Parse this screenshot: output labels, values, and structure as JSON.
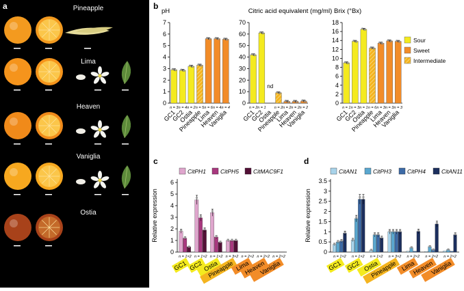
{
  "panel_letters": {
    "a": "a",
    "b": "b",
    "c": "c",
    "d": "d"
  },
  "photo_panel": {
    "varieties": [
      {
        "name": "Pineapple",
        "fruit_color": "#f39a1f",
        "has_flower": false,
        "leaf": true
      },
      {
        "name": "Lima",
        "fruit_color": "#f5941c",
        "has_flower": true,
        "leaf": true
      },
      {
        "name": "Heaven",
        "fruit_color": "#f08a1a",
        "has_flower": true,
        "leaf": true
      },
      {
        "name": "Vaniglia",
        "fruit_color": "#f7a81f",
        "has_flower": true,
        "leaf": true
      },
      {
        "name": "Ostia",
        "fruit_color": "#a8421a",
        "has_flower": false,
        "leaf": false
      }
    ]
  },
  "colors": {
    "sour": "#f4ea1f",
    "sweet": "#f28c28",
    "intermediate": "#f4b41f",
    "hatch": "#f6d27a",
    "cityph1": "#dfa6cd",
    "cityph5": "#a8387e",
    "citmac9f1": "#521036",
    "citan1": "#a8d3ea",
    "cityph3": "#5aa7cf",
    "cityph4": "#3d6aa6",
    "citan11": "#1c2f5e"
  },
  "chart_data": [
    {
      "type": "bar",
      "title": "pH",
      "categories": [
        "GC1",
        "GC2",
        "Ostia",
        "Pineapple",
        "Lima",
        "Heaven",
        "Vaniglia"
      ],
      "values": [
        2.9,
        2.85,
        3.2,
        3.3,
        5.6,
        5.6,
        5.55
      ],
      "classes": [
        "sour",
        "sour",
        "sour",
        "intermediate",
        "sweet",
        "sweet",
        "sweet"
      ],
      "n_labels": [
        "n = 3",
        "n = 4",
        "n = 2",
        "n = 5",
        "n = 6",
        "n = 4",
        "n = 4"
      ],
      "yticks": [
        0,
        1,
        2,
        3,
        4,
        5,
        6,
        7
      ],
      "ylim": [
        0,
        7
      ]
    },
    {
      "type": "bar",
      "title": "Citric acid equivalent (mg/ml)",
      "categories": [
        "GC1",
        "GC2",
        "Ostia",
        "Pineapple",
        "Lima",
        "Heaven",
        "Vaniglia"
      ],
      "values": [
        42,
        61,
        null,
        9,
        1.5,
        1.5,
        1.8
      ],
      "classes": [
        "sour",
        "sour",
        "sour",
        "intermediate",
        "sweet",
        "sweet",
        "sweet"
      ],
      "n_labels": [
        "n = 2",
        "n = 1",
        "",
        "n = 2",
        "n = 2",
        "n = 2",
        "n = 2"
      ],
      "annotations": [
        {
          "category": "Ostia",
          "text": "nd"
        }
      ],
      "yticks": [
        0,
        10,
        20,
        30,
        40,
        50,
        60,
        70
      ],
      "ylim": [
        0,
        70
      ]
    },
    {
      "type": "bar",
      "title": "Brix (°Bx)",
      "categories": [
        "GC1",
        "GC2",
        "Ostia",
        "Pineapple",
        "Lima",
        "Heaven",
        "Vaniglia"
      ],
      "values": [
        9,
        13.8,
        16.5,
        12.3,
        13.4,
        13.9,
        13.8
      ],
      "classes": [
        "sour",
        "sour",
        "sour",
        "intermediate",
        "sweet",
        "sweet",
        "sweet"
      ],
      "n_labels": [
        "n = 1",
        "n = 3",
        "n = 1",
        "n = 6",
        "n = 3",
        "n = 3",
        "n = 3"
      ],
      "yticks": [
        0,
        2,
        4,
        6,
        8,
        10,
        12,
        14,
        16,
        18
      ],
      "ylim": [
        0,
        18
      ],
      "legend": [
        {
          "label": "Sour",
          "class": "sour"
        },
        {
          "label": "Sweet",
          "class": "sweet"
        },
        {
          "label": "Intermediate",
          "class": "intermediate"
        }
      ],
      "legend_position": "right"
    },
    {
      "type": "bar",
      "title": "",
      "ylabel": "Relative expression",
      "categories": [
        "GC1",
        "GC2",
        "Ostia",
        "Pineapple",
        "Lima",
        "Heaven",
        "Vaniglia"
      ],
      "category_classes": [
        "sour",
        "sour",
        "sour",
        "intermediate",
        "sweet",
        "sweet",
        "sweet"
      ],
      "n_labels": [
        "n = 1×2",
        "n = 1×2",
        "n = 1×2",
        "n = 3×2",
        "n = 2×2",
        "n = 2×2",
        "n = 2×2"
      ],
      "series": [
        {
          "name": "CitPH1",
          "color_key": "cityph1",
          "values": [
            1.8,
            4.5,
            3.4,
            1.0,
            0.02,
            0.02,
            0.02
          ]
        },
        {
          "name": "CitPH5",
          "color_key": "cityph5",
          "values": [
            1.2,
            2.95,
            1.3,
            1.0,
            0.02,
            0.02,
            0.02
          ]
        },
        {
          "name": "CitMAC9F1",
          "color_key": "citmac9f1",
          "values": [
            0.45,
            1.9,
            0.85,
            1.0,
            0.02,
            0.02,
            0.02
          ]
        }
      ],
      "yticks": [
        0,
        1,
        2,
        3,
        4,
        5,
        6
      ],
      "ylim": [
        0,
        6.3
      ]
    },
    {
      "type": "bar",
      "title": "",
      "ylabel": "Relative expression",
      "categories": [
        "GC1",
        "GC2",
        "Ostia",
        "Pineapple",
        "Lima",
        "Heaven",
        "Vaniglia"
      ],
      "category_classes": [
        "sour",
        "sour",
        "sour",
        "intermediate",
        "sweet",
        "sweet",
        "sweet"
      ],
      "n_labels": [
        "n = 1×2",
        "n = 1×2",
        "n = 1×2",
        "n = 3×2",
        "n = 2×2",
        "n = 2×2",
        "n = 2×2"
      ],
      "series": [
        {
          "name": "CitAN1",
          "color_key": "citan1",
          "values": [
            0.38,
            0.6,
            0.1,
            1.0,
            0.04,
            0.03,
            0.05
          ]
        },
        {
          "name": "CitPH3",
          "color_key": "cityph3",
          "values": [
            0.5,
            1.65,
            0.85,
            1.0,
            0.22,
            0.27,
            0.12
          ]
        },
        {
          "name": "CitPH4",
          "color_key": "cityph4",
          "values": [
            0.55,
            2.6,
            0.85,
            1.0,
            0.04,
            0.12,
            0.04
          ]
        },
        {
          "name": "CitAN11",
          "color_key": "citan11",
          "values": [
            0.93,
            2.6,
            0.7,
            1.0,
            1.02,
            1.38,
            0.85
          ]
        }
      ],
      "yticks": [
        0,
        0.5,
        1,
        1.5,
        2,
        2.5,
        3,
        3.5
      ],
      "ylim": [
        0,
        3.6
      ]
    }
  ]
}
